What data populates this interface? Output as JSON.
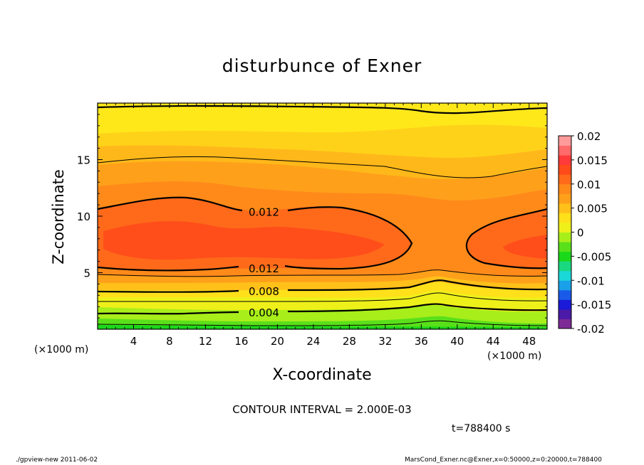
{
  "chart_data": {
    "type": "contour",
    "title": "disturbunce of Exner",
    "xlabel": "X-coordinate",
    "ylabel": "Z-coordinate",
    "x_unit": "(×1000 m)",
    "xlim": [
      0,
      50
    ],
    "ylim": [
      0,
      20
    ],
    "x_ticks": [
      4,
      8,
      12,
      16,
      20,
      24,
      28,
      32,
      36,
      40,
      44,
      48
    ],
    "y_ticks": [
      5,
      10,
      15
    ],
    "contour_interval_text": "CONTOUR INTERVAL = 2.000E-03",
    "contour_labels": [
      {
        "text": "0.012",
        "x": 18.5,
        "z": 10.4
      },
      {
        "text": "0.012",
        "x": 18.5,
        "z": 5.4
      },
      {
        "text": "0.008",
        "x": 18.5,
        "z": 3.4
      },
      {
        "text": "0.004",
        "x": 18.5,
        "z": 1.5
      }
    ],
    "contours": [
      {
        "level": 0.002,
        "points": [
          [
            0,
            0.3
          ],
          [
            10,
            0.4
          ],
          [
            20,
            0.35
          ],
          [
            30,
            0.4
          ],
          [
            38,
            0.9
          ],
          [
            44,
            0.5
          ],
          [
            50,
            0.35
          ]
        ]
      },
      {
        "level": 0.004,
        "points": [
          [
            0,
            1.6
          ],
          [
            5,
            1.5
          ],
          [
            10,
            1.2
          ],
          [
            20,
            1.4
          ],
          [
            30,
            1.6
          ],
          [
            38,
            2.2
          ],
          [
            44,
            1.8
          ],
          [
            50,
            1.5
          ]
        ]
      },
      {
        "level": 0.006,
        "points": [
          [
            0,
            2.4
          ],
          [
            10,
            2.3
          ],
          [
            20,
            2.4
          ],
          [
            30,
            2.6
          ],
          [
            38,
            3.3
          ],
          [
            44,
            2.8
          ],
          [
            50,
            2.6
          ]
        ]
      },
      {
        "level": 0.008,
        "points": [
          [
            0,
            3.5
          ],
          [
            10,
            3.3
          ],
          [
            20,
            3.4
          ],
          [
            30,
            3.6
          ],
          [
            38,
            4.5
          ],
          [
            44,
            3.9
          ],
          [
            50,
            3.6
          ]
        ]
      },
      {
        "level": 0.01,
        "points": [
          [
            0,
            4.3
          ],
          [
            10,
            4.2
          ],
          [
            20,
            4.3
          ],
          [
            30,
            4.6
          ],
          [
            38,
            5.5
          ],
          [
            44,
            4.9
          ],
          [
            50,
            4.6
          ]
        ]
      },
      {
        "level": 0.014,
        "points": [
          [
            0,
            14.8
          ],
          [
            5,
            15.2
          ],
          [
            10,
            15.6
          ],
          [
            20,
            15.1
          ],
          [
            28,
            14.6
          ],
          [
            36,
            13.5
          ],
          [
            42,
            13.6
          ],
          [
            50,
            14.8
          ]
        ]
      },
      {
        "level": 0.006,
        "points": [
          [
            0,
            19.5
          ],
          [
            10,
            19.8
          ],
          [
            20,
            19.7
          ],
          [
            30,
            19.5
          ],
          [
            36,
            19.0
          ],
          [
            42,
            19.4
          ],
          [
            50,
            19.7
          ]
        ]
      }
    ],
    "colorbar": {
      "ticks": [
        "0.02",
        "0.015",
        "0.01",
        "0.005",
        "0",
        "-0.005",
        "-0.01",
        "-0.015",
        "-0.02"
      ],
      "colors": [
        "#7d2a96",
        "#4b1aa8",
        "#1a1ad8",
        "#1a5ae8",
        "#1aa0e8",
        "#1ad8d8",
        "#1ad880",
        "#1ad81a",
        "#5ae01a",
        "#a8ee1a",
        "#eef01a",
        "#ffe01a",
        "#ffc01a",
        "#ffa01a",
        "#ff8a1a",
        "#ff6a1a",
        "#ff4a1a",
        "#ff3a3a",
        "#ff6a6a",
        "#ff9a9a"
      ]
    }
  },
  "page": {
    "contour_interval": "CONTOUR INTERVAL = 2.000E-03",
    "timestamp": "t=788400 s",
    "footer_left": "./gpview-new  2011-06-02",
    "footer_right": "MarsCond_Exner.nc@Exner,x=0:50000,z=0:20000,t=788400"
  }
}
